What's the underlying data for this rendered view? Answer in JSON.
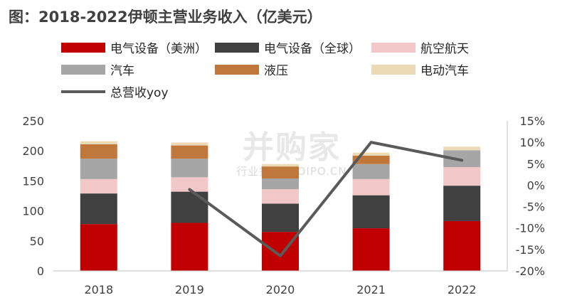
{
  "chart_data": {
    "type": "bar",
    "stacked": true,
    "title": "图：2018-2022伊顿主营业务收入（亿美元）",
    "categories": [
      "2018",
      "2019",
      "2020",
      "2021",
      "2022"
    ],
    "series": [
      {
        "name": "电气设备（美洲）",
        "color": "#c00000",
        "values": [
          78,
          80,
          65,
          71,
          83
        ]
      },
      {
        "name": "电气设备（全球）",
        "color": "#404040",
        "values": [
          51,
          52,
          47,
          55,
          59
        ]
      },
      {
        "name": "航空航天",
        "color": "#f2c7c7",
        "values": [
          24,
          24,
          24,
          27,
          31
        ]
      },
      {
        "name": "汽车",
        "color": "#a6a6a6",
        "values": [
          34,
          31,
          18,
          25,
          28
        ]
      },
      {
        "name": "液压",
        "color": "#c0773c",
        "values": [
          24,
          22,
          20,
          14,
          0
        ]
      },
      {
        "name": "电动汽车",
        "color": "#ecd9b5",
        "values": [
          5,
          5,
          4,
          5,
          6
        ]
      }
    ],
    "line_series": {
      "name": "总营收yoy",
      "color": "#5a5a5a",
      "axis": "right",
      "values": [
        null,
        -1.0,
        -16.5,
        10.0,
        5.8
      ]
    },
    "left_axis": {
      "ylim": [
        0,
        250
      ],
      "ticks": [
        0,
        50,
        100,
        150,
        200,
        250
      ]
    },
    "right_axis": {
      "ylim": [
        -20,
        15
      ],
      "ticks": [
        "-20%",
        "-15%",
        "-10%",
        "-5%",
        "0%",
        "5%",
        "10%",
        "15%"
      ]
    },
    "legend_position": "top",
    "watermark": {
      "main": "并购家",
      "sub": "行业报告 IPOIPO.CN"
    }
  }
}
